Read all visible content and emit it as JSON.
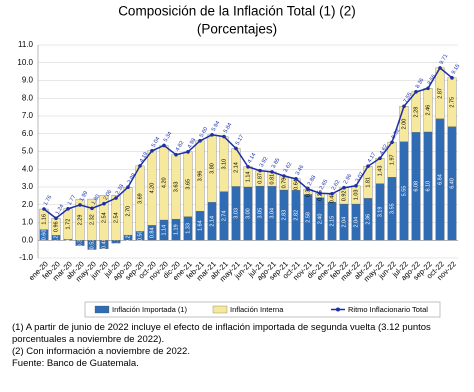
{
  "chart_data": {
    "type": "bar",
    "stacked": true,
    "title": "Composición de la Inflación Total (1) (2)",
    "subtitle": "(Porcentajes)",
    "categories": [
      "ene-20",
      "feb-20",
      "mar-20",
      "abr-20",
      "may-20",
      "jun-20",
      "jul-20",
      "ago-20",
      "sep-20",
      "oct-20",
      "nov-20",
      "dic-20",
      "ene-21",
      "feb-21",
      "mar-21",
      "abr-21",
      "may-21",
      "jun-21",
      "jul-21",
      "ago-21",
      "sep-21",
      "oct-21",
      "nov-21",
      "dic-21",
      "ene-22",
      "feb-22",
      "mar-22",
      "abr-22",
      "may-22",
      "jun-22",
      "jul-22",
      "ago-22",
      "sep-22",
      "oct-22",
      "nov-22"
    ],
    "series": [
      {
        "name": "Inflación Importada (1)",
        "type": "bar",
        "color": "#2f6cb3",
        "values": [
          0.6,
          0.28,
          0.05,
          -0.3,
          -0.52,
          -0.48,
          -0.16,
          0.29,
          0.5,
          0.84,
          1.14,
          1.19,
          1.33,
          1.64,
          2.14,
          2.74,
          3.03,
          3.0,
          3.05,
          3.04,
          2.83,
          2.82,
          2.58,
          2.4,
          2.15,
          2.04,
          2.04,
          2.36,
          3.19,
          3.55,
          5.55,
          6.08,
          6.1,
          6.84,
          6.4
        ],
        "value_labels": [
          "0.60",
          "0.28",
          "0.05",
          "-0.30",
          "-0.52",
          "-0.48",
          "-0.16",
          "0.29",
          "0.50",
          "0.84",
          "1.14",
          "1.19",
          "1.33",
          "1.64",
          "2.14",
          "2.74",
          "3.03",
          "3.00",
          "3.05",
          "3.04",
          "2.83",
          "2.82",
          "2.58",
          "2.40",
          "2.15",
          "2.04",
          "2.04",
          "2.36",
          "3.19",
          "3.55",
          "5.55",
          "6.08",
          "6.10",
          "6.84",
          "6.40"
        ]
      },
      {
        "name": "Inflación Interna",
        "type": "bar",
        "color": "#f6e89c",
        "values": [
          1.16,
          0.96,
          1.72,
          2.29,
          2.32,
          2.54,
          2.54,
          2.7,
          3.69,
          4.2,
          4.2,
          3.63,
          3.65,
          3.96,
          3.8,
          3.1,
          2.14,
          1.14,
          0.87,
          0.81,
          0.79,
          0.64,
          0.3,
          0.25,
          0.47,
          0.92,
          1.03,
          1.81,
          1.43,
          1.97,
          2.0,
          2.28,
          2.46,
          2.87,
          2.75
        ],
        "value_labels": [
          "1.16",
          "0.96",
          "1.72",
          "2.29",
          "2.32",
          "2.54",
          "2.54",
          "2.70",
          "3.69",
          "4.20",
          "4.20",
          "3.63",
          "3.65",
          "3.96",
          "3.80",
          "3.10",
          "2.14",
          "1.14",
          "0.87",
          "0.81",
          "0.79",
          "0.64",
          "0.30",
          "0.25",
          "0.47",
          "0.92",
          "1.03",
          "1.81",
          "1.43",
          "1.97",
          "2.00",
          "2.28",
          "2.46",
          "2.87",
          "2.75"
        ]
      },
      {
        "name": "Ritmo Inflacionario Total",
        "type": "line",
        "color": "#1c2fa6",
        "values": [
          1.76,
          1.24,
          1.77,
          1.99,
          1.8,
          2.06,
          2.38,
          2.99,
          4.19,
          5.04,
          5.34,
          4.82,
          4.98,
          5.6,
          5.94,
          5.84,
          5.17,
          4.14,
          3.92,
          3.85,
          3.62,
          3.46,
          2.88,
          2.65,
          2.62,
          2.96,
          3.07,
          4.17,
          4.62,
          5.52,
          7.55,
          8.36,
          8.56,
          9.71,
          9.15
        ],
        "value_labels": [
          "1.76",
          "1.24",
          "1.77",
          "1.99",
          "1.80",
          "2.06",
          "2.38",
          "2.99",
          "4.19",
          "5.04",
          "5.34",
          "4.82",
          "4.98",
          "5.60",
          "5.94",
          "5.84",
          "5.17",
          "4.14",
          "3.92",
          "3.85",
          "3.62",
          "3.46",
          "2.88",
          "2.65",
          "2.62",
          "2.96",
          "3.07",
          "4.17",
          "4.62",
          "5.52",
          "7.55",
          "8.36",
          "8.56",
          "9.71",
          "9.15"
        ]
      }
    ],
    "ylim": [
      -1,
      11
    ],
    "yticks": [
      {
        "value": -1,
        "label": "-1.0"
      },
      {
        "value": 0,
        "label": "0.0"
      },
      {
        "value": 1,
        "label": "1.0"
      },
      {
        "value": 2,
        "label": "2.0"
      },
      {
        "value": 3,
        "label": "3.0"
      },
      {
        "value": 4,
        "label": "4.0"
      },
      {
        "value": 5,
        "label": "5.0"
      },
      {
        "value": 6,
        "label": "6.0"
      },
      {
        "value": 7,
        "label": "7.0"
      },
      {
        "value": 8,
        "label": "8.0"
      },
      {
        "value": 9,
        "label": "9.0"
      },
      {
        "value": 10,
        "label": "10.0"
      },
      {
        "value": 11,
        "label": "11.0"
      }
    ],
    "grid": true,
    "notes": [
      "(1) A partir de junio de 2022 incluye el efecto de inflación importada de segunda vuelta (3.12 puntos porcentuales a noviembre de 2022).",
      "(2) Con información a noviembre de 2022.",
      "Fuente: Banco de Guatemala."
    ]
  }
}
